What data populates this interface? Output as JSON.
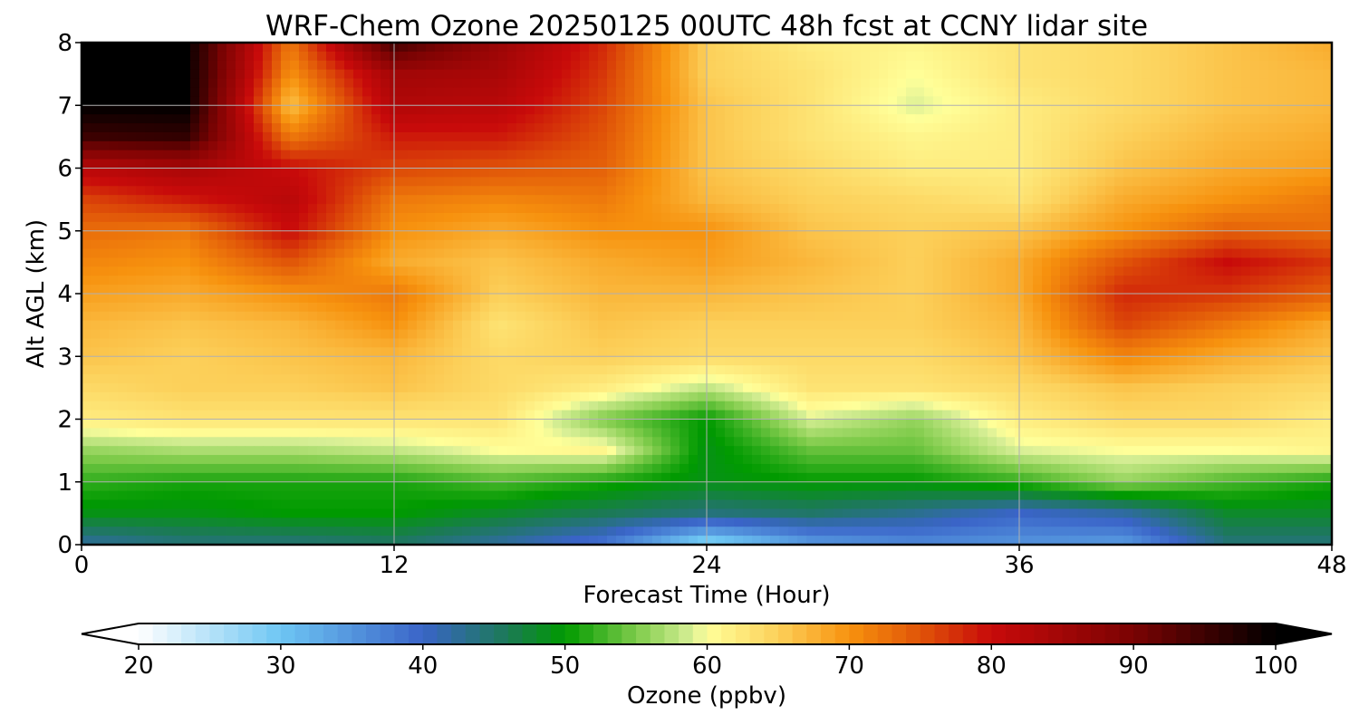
{
  "chart_data": {
    "type": "heatmap",
    "title": "WRF-Chem Ozone  20250125 00UTC 48h fcst at CCNY lidar site",
    "xlabel": "Forecast Time (Hour)",
    "ylabel": "Alt AGL (km)",
    "xlim": [
      0,
      48
    ],
    "ylim": [
      0,
      8
    ],
    "xticks": [
      0,
      12,
      24,
      36,
      48
    ],
    "yticks": [
      0,
      1,
      2,
      3,
      4,
      5,
      6,
      7,
      8
    ],
    "grid": true,
    "colorbar": {
      "label": "Ozone  (ppbv)",
      "range": [
        20,
        100
      ],
      "ticks": [
        20,
        30,
        40,
        50,
        60,
        70,
        80,
        90,
        100
      ],
      "extend": "both",
      "stops": [
        {
          "value": 20,
          "color": "#ffffff"
        },
        {
          "value": 30,
          "color": "#6ec6f3"
        },
        {
          "value": 40,
          "color": "#3a64c8"
        },
        {
          "value": 46,
          "color": "#1b7a55"
        },
        {
          "value": 50,
          "color": "#009a00"
        },
        {
          "value": 55,
          "color": "#7ecb4a"
        },
        {
          "value": 59,
          "color": "#d8ef96"
        },
        {
          "value": 60,
          "color": "#ffff99"
        },
        {
          "value": 65,
          "color": "#fcd05a"
        },
        {
          "value": 70,
          "color": "#f7920e"
        },
        {
          "value": 75,
          "color": "#e05408"
        },
        {
          "value": 80,
          "color": "#c80a0a"
        },
        {
          "value": 90,
          "color": "#7a0303"
        },
        {
          "value": 100,
          "color": "#000000"
        }
      ]
    },
    "x": [
      0,
      4,
      8,
      12,
      16,
      20,
      24,
      28,
      32,
      36,
      40,
      44,
      48
    ],
    "y": [
      0,
      0.5,
      1,
      1.5,
      2,
      2.5,
      3,
      3.5,
      4,
      4.5,
      5,
      5.5,
      6,
      6.5,
      7,
      7.5,
      8
    ],
    "values": [
      [
        42,
        44,
        44,
        45,
        42,
        38,
        27,
        34,
        36,
        35,
        34,
        44,
        44
      ],
      [
        49,
        49,
        50,
        50,
        48,
        46,
        44,
        45,
        43,
        40,
        42,
        48,
        48
      ],
      [
        52,
        51,
        51,
        51,
        53,
        51,
        49,
        50,
        50,
        52,
        56,
        53,
        51
      ],
      [
        56,
        57,
        57,
        58,
        60,
        61,
        49,
        54,
        54,
        59,
        60,
        60,
        61
      ],
      [
        62,
        63,
        63,
        63,
        63,
        55,
        50,
        59,
        56,
        62,
        64,
        64,
        62
      ],
      [
        64,
        65,
        65,
        66,
        64,
        62,
        58,
        63,
        63,
        64,
        66,
        65,
        64
      ],
      [
        66,
        65,
        66,
        67,
        64,
        65,
        64,
        64,
        64,
        66,
        71,
        68,
        66
      ],
      [
        67,
        66,
        67,
        70,
        63,
        66,
        65,
        65,
        65,
        67,
        76,
        72,
        68
      ],
      [
        69,
        68,
        70,
        72,
        65,
        67,
        67,
        66,
        65,
        68,
        78,
        77,
        74
      ],
      [
        71,
        70,
        75,
        68,
        66,
        68,
        69,
        67,
        65,
        68,
        75,
        80,
        77
      ],
      [
        73,
        72,
        80,
        70,
        68,
        70,
        70,
        66,
        65,
        66,
        70,
        74,
        73
      ],
      [
        76,
        79,
        82,
        72,
        71,
        72,
        67,
        65,
        64,
        63,
        68,
        70,
        72
      ],
      [
        82,
        84,
        80,
        76,
        75,
        74,
        66,
        64,
        62,
        62,
        66,
        68,
        69
      ],
      [
        95,
        96,
        72,
        79,
        79,
        75,
        66,
        63,
        61,
        62,
        65,
        67,
        68
      ],
      [
        100,
        100,
        66,
        83,
        82,
        76,
        66,
        63,
        59,
        62,
        64,
        66,
        67
      ],
      [
        100,
        100,
        70,
        85,
        84,
        77,
        65,
        63,
        60,
        63,
        64,
        66,
        67
      ],
      [
        100,
        100,
        72,
        95,
        86,
        78,
        65,
        62,
        61,
        63,
        64,
        66,
        68
      ]
    ]
  }
}
